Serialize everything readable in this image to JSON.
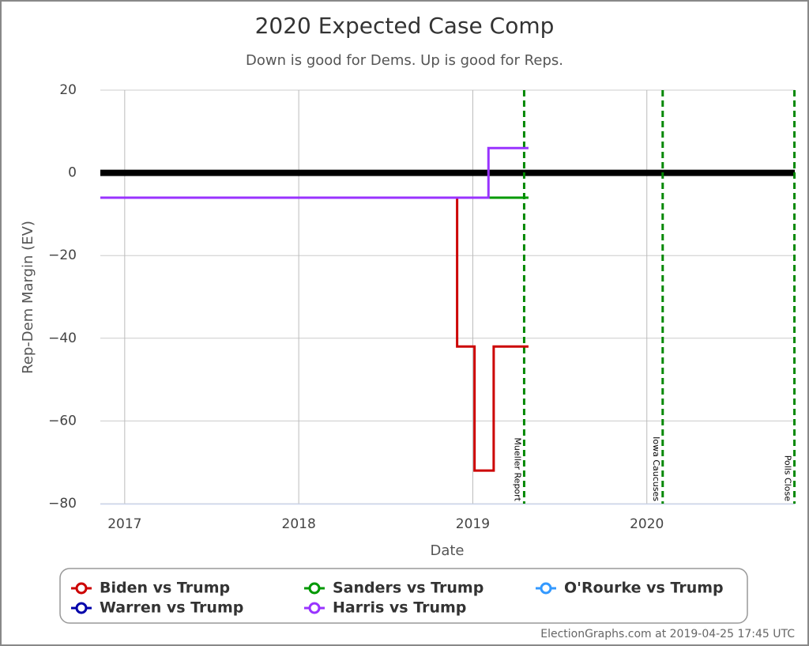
{
  "chart_data": {
    "type": "line",
    "step": true,
    "title": "2020 Expected Case Comp",
    "subtitle": "Down is good for Dems. Up is good for Reps.",
    "x_label": "Date",
    "y_label": "Rep-Dem Margin (EV)",
    "xlim": [
      2016.86,
      2020.85
    ],
    "xticks": [
      2017,
      2018,
      2019,
      2020
    ],
    "ylim": [
      -80,
      20
    ],
    "yticks": [
      {
        "value": -80,
        "label": "−80"
      },
      {
        "value": -60,
        "label": "−60"
      },
      {
        "value": -40,
        "label": "−40"
      },
      {
        "value": -20,
        "label": "−20"
      },
      0,
      20
    ],
    "grid": true,
    "baseline": 0,
    "series": [
      {
        "name": "Biden vs Trump",
        "color": "#cc0000",
        "x": [
          2016.86,
          2018.91,
          2019.01,
          2019.12,
          2019.32
        ],
        "values": [
          -6,
          -42,
          -72,
          -42,
          -42
        ]
      },
      {
        "name": "Sanders vs Trump",
        "color": "#009900",
        "x": [
          2016.86,
          2019.32
        ],
        "values": [
          -6,
          -6
        ]
      },
      {
        "name": "O'Rourke vs Trump",
        "color": "#3399ff",
        "x": [
          2016.86,
          2019.09
        ],
        "values": [
          -6,
          -6
        ]
      },
      {
        "name": "Warren vs Trump",
        "color": "#0000aa",
        "x": [
          2016.86,
          2019.09
        ],
        "values": [
          -6,
          -6
        ]
      },
      {
        "name": "Harris vs Trump",
        "color": "#9933ff",
        "x": [
          2016.86,
          2019.09,
          2019.32
        ],
        "values": [
          -6,
          6,
          6
        ]
      }
    ],
    "events": [
      {
        "x": 2019.295,
        "label": "Mueller Report"
      },
      {
        "x": 2020.091,
        "label": "Iowa Caucuses"
      },
      {
        "x": 2020.848,
        "label": "Polls Close"
      }
    ],
    "footer": "ElectionGraphs.com at 2019-04-25 17:45 UTC"
  }
}
